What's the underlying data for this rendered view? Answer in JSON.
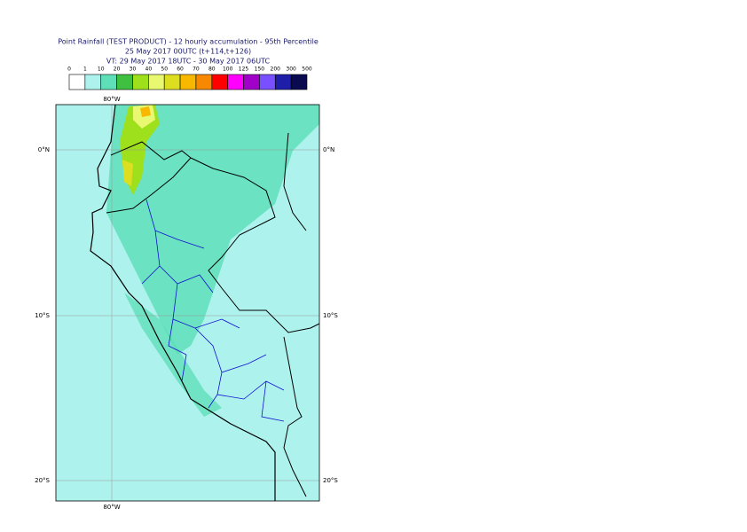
{
  "title": {
    "lines": [
      "Point Rainfall (TEST PRODUCT) - 12 hourly accumulation - 95th Percentile",
      "25 May 2017 00UTC (t+114,t+126)",
      "VT: 29 May 2017 18UTC - 30 May 2017 06UTC"
    ]
  },
  "legend": {
    "labels": [
      0,
      1,
      10,
      20,
      30,
      40,
      50,
      60,
      70,
      80,
      100,
      125,
      150,
      200,
      300,
      500
    ],
    "colors": [
      "#ffffff",
      "#aef2ee",
      "#5fdfb8",
      "#40c040",
      "#9ee01c",
      "#e8f870",
      "#dede20",
      "#f8b800",
      "#f88800",
      "#ff0000",
      "#ff00ff",
      "#a000c8",
      "#7850ff",
      "#1e1ea8",
      "#0a0a50"
    ]
  },
  "map": {
    "top_label": "80°W",
    "bottom_label": "80°W",
    "lat_labels": [
      "0°N",
      "10°S",
      "20°S"
    ]
  }
}
